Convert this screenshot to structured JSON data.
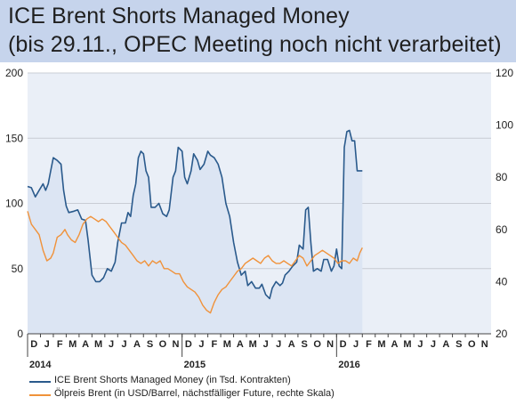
{
  "title": {
    "line1": "ICE Brent Shorts Managed Money",
    "line2": "(bis 29.11., OPEC Meeting noch nicht verarbeitet)"
  },
  "colors": {
    "title_bg": "#c6d4ec",
    "plot_bg": "#eaeff7",
    "shorts_line": "#2a5a8c",
    "shorts_fill": "#dce5f3",
    "oil_line": "#f0923a",
    "grid": "#c8ccd4"
  },
  "legend": [
    {
      "label": "ICE Brent Shorts Managed Money (in Tsd. Kontrakten)",
      "color": "#2a5a8c"
    },
    {
      "label": "Ölpreis Brent (in USD/Barrel, nächstfälliger Future, rechte Skala)",
      "color": "#f0923a"
    }
  ],
  "chart_data": {
    "type": "line",
    "x_axis": {
      "months": [
        "D",
        "J",
        "F",
        "M",
        "A",
        "M",
        "J",
        "J",
        "A",
        "S",
        "O",
        "N",
        "D",
        "J",
        "F",
        "M",
        "A",
        "M",
        "J",
        "J",
        "A",
        "S",
        "O",
        "N",
        "D",
        "J",
        "F",
        "M",
        "A",
        "M",
        "J",
        "J",
        "A",
        "S",
        "O",
        "N"
      ],
      "years": [
        {
          "label": "2014",
          "month_index": 0
        },
        {
          "label": "2015",
          "month_index": 12
        },
        {
          "label": "2016",
          "month_index": 24
        }
      ],
      "range_months": [
        0,
        36
      ]
    },
    "y_left": {
      "ticks": [
        "0",
        "50",
        "100",
        "150",
        "200"
      ],
      "range": [
        0,
        200
      ]
    },
    "y_right": {
      "ticks": [
        "20",
        "40",
        "60",
        "80",
        "100",
        "120"
      ],
      "range": [
        20,
        120
      ]
    },
    "series": [
      {
        "name": "ICE Brent Shorts Managed Money (in Tsd. Kontrakten)",
        "axis": "left",
        "type": "area",
        "points": [
          [
            0,
            113
          ],
          [
            0.3,
            112
          ],
          [
            0.6,
            105
          ],
          [
            0.9,
            110
          ],
          [
            1.2,
            115
          ],
          [
            1.4,
            110
          ],
          [
            1.6,
            115
          ],
          [
            1.8,
            125
          ],
          [
            2.0,
            135
          ],
          [
            2.3,
            133
          ],
          [
            2.6,
            130
          ],
          [
            2.8,
            110
          ],
          [
            3.0,
            98
          ],
          [
            3.2,
            93
          ],
          [
            3.6,
            94
          ],
          [
            3.9,
            95
          ],
          [
            4.2,
            88
          ],
          [
            4.5,
            87
          ],
          [
            4.7,
            72
          ],
          [
            5.0,
            45
          ],
          [
            5.3,
            40
          ],
          [
            5.6,
            40
          ],
          [
            5.9,
            43
          ],
          [
            6.2,
            50
          ],
          [
            6.5,
            48
          ],
          [
            6.8,
            55
          ],
          [
            7.0,
            70
          ],
          [
            7.3,
            85
          ],
          [
            7.6,
            85
          ],
          [
            7.8,
            93
          ],
          [
            8.0,
            90
          ],
          [
            8.2,
            106
          ],
          [
            8.4,
            115
          ],
          [
            8.6,
            135
          ],
          [
            8.8,
            140
          ],
          [
            9.0,
            138
          ],
          [
            9.2,
            125
          ],
          [
            9.4,
            120
          ],
          [
            9.6,
            97
          ],
          [
            9.9,
            97
          ],
          [
            10.2,
            100
          ],
          [
            10.5,
            92
          ],
          [
            10.8,
            90
          ],
          [
            11.0,
            95
          ],
          [
            11.3,
            120
          ],
          [
            11.5,
            125
          ],
          [
            11.7,
            143
          ],
          [
            12.0,
            140
          ],
          [
            12.2,
            120
          ],
          [
            12.4,
            115
          ],
          [
            12.7,
            125
          ],
          [
            12.9,
            138
          ],
          [
            13.2,
            133
          ],
          [
            13.4,
            126
          ],
          [
            13.7,
            130
          ],
          [
            14.0,
            140
          ],
          [
            14.2,
            137
          ],
          [
            14.5,
            135
          ],
          [
            14.8,
            130
          ],
          [
            15.1,
            120
          ],
          [
            15.4,
            100
          ],
          [
            15.7,
            90
          ],
          [
            16.0,
            70
          ],
          [
            16.3,
            55
          ],
          [
            16.6,
            45
          ],
          [
            16.9,
            48
          ],
          [
            17.1,
            37
          ],
          [
            17.4,
            40
          ],
          [
            17.7,
            35
          ],
          [
            18.0,
            35
          ],
          [
            18.2,
            38
          ],
          [
            18.5,
            30
          ],
          [
            18.8,
            27
          ],
          [
            19.0,
            35
          ],
          [
            19.3,
            40
          ],
          [
            19.6,
            37
          ],
          [
            19.8,
            39
          ],
          [
            20.0,
            45
          ],
          [
            20.3,
            48
          ],
          [
            20.6,
            52
          ],
          [
            20.9,
            55
          ],
          [
            21.1,
            68
          ],
          [
            21.4,
            65
          ],
          [
            21.6,
            95
          ],
          [
            21.8,
            97
          ],
          [
            22.0,
            70
          ],
          [
            22.2,
            48
          ],
          [
            22.5,
            50
          ],
          [
            22.8,
            48
          ],
          [
            23.0,
            57
          ],
          [
            23.3,
            57
          ],
          [
            23.6,
            48
          ],
          [
            23.8,
            52
          ],
          [
            24.0,
            65
          ],
          [
            24.2,
            52
          ],
          [
            24.4,
            50
          ],
          [
            24.6,
            143
          ],
          [
            24.8,
            155
          ],
          [
            25.0,
            156
          ],
          [
            25.2,
            148
          ],
          [
            25.4,
            148
          ],
          [
            25.6,
            125
          ],
          [
            26.0,
            125
          ]
        ]
      },
      {
        "name": "Ölpreis Brent (in USD/Barrel, nächstfälliger Future, rechte Skala)",
        "axis": "right",
        "type": "line",
        "points": [
          [
            0,
            67
          ],
          [
            0.3,
            62
          ],
          [
            0.6,
            60
          ],
          [
            0.9,
            58
          ],
          [
            1.2,
            52
          ],
          [
            1.5,
            48
          ],
          [
            1.8,
            49
          ],
          [
            2.0,
            51
          ],
          [
            2.3,
            57
          ],
          [
            2.6,
            58
          ],
          [
            2.9,
            60
          ],
          [
            3.1,
            58
          ],
          [
            3.4,
            56
          ],
          [
            3.7,
            55
          ],
          [
            4.0,
            58
          ],
          [
            4.3,
            62
          ],
          [
            4.6,
            64
          ],
          [
            4.9,
            65
          ],
          [
            5.2,
            64
          ],
          [
            5.5,
            63
          ],
          [
            5.8,
            64
          ],
          [
            6.1,
            63
          ],
          [
            6.4,
            61
          ],
          [
            6.7,
            59
          ],
          [
            7.0,
            57
          ],
          [
            7.3,
            55
          ],
          [
            7.6,
            54
          ],
          [
            7.9,
            52
          ],
          [
            8.2,
            50
          ],
          [
            8.5,
            48
          ],
          [
            8.8,
            47
          ],
          [
            9.1,
            48
          ],
          [
            9.4,
            46
          ],
          [
            9.7,
            48
          ],
          [
            10.0,
            47
          ],
          [
            10.3,
            48
          ],
          [
            10.6,
            45
          ],
          [
            10.9,
            45
          ],
          [
            11.2,
            44
          ],
          [
            11.5,
            43
          ],
          [
            11.8,
            43
          ],
          [
            12.1,
            40
          ],
          [
            12.4,
            38
          ],
          [
            12.7,
            37
          ],
          [
            13.0,
            36
          ],
          [
            13.3,
            34
          ],
          [
            13.6,
            31
          ],
          [
            13.9,
            29
          ],
          [
            14.2,
            28
          ],
          [
            14.5,
            32
          ],
          [
            14.8,
            35
          ],
          [
            15.1,
            37
          ],
          [
            15.4,
            38
          ],
          [
            15.7,
            40
          ],
          [
            16.0,
            42
          ],
          [
            16.3,
            44
          ],
          [
            16.6,
            45
          ],
          [
            16.9,
            47
          ],
          [
            17.2,
            48
          ],
          [
            17.5,
            49
          ],
          [
            17.8,
            48
          ],
          [
            18.1,
            47
          ],
          [
            18.4,
            49
          ],
          [
            18.7,
            50
          ],
          [
            19.0,
            48
          ],
          [
            19.3,
            47
          ],
          [
            19.6,
            47
          ],
          [
            19.9,
            48
          ],
          [
            20.2,
            47
          ],
          [
            20.5,
            46
          ],
          [
            20.8,
            48
          ],
          [
            21.1,
            50
          ],
          [
            21.4,
            49
          ],
          [
            21.7,
            46
          ],
          [
            22.0,
            48
          ],
          [
            22.3,
            50
          ],
          [
            22.6,
            51
          ],
          [
            22.9,
            52
          ],
          [
            23.2,
            51
          ],
          [
            23.5,
            50
          ],
          [
            23.8,
            49
          ],
          [
            24.1,
            47
          ],
          [
            24.4,
            48
          ],
          [
            24.7,
            48
          ],
          [
            25.0,
            47
          ],
          [
            25.3,
            49
          ],
          [
            25.6,
            48
          ],
          [
            25.8,
            51
          ],
          [
            26.0,
            53
          ]
        ]
      }
    ]
  }
}
